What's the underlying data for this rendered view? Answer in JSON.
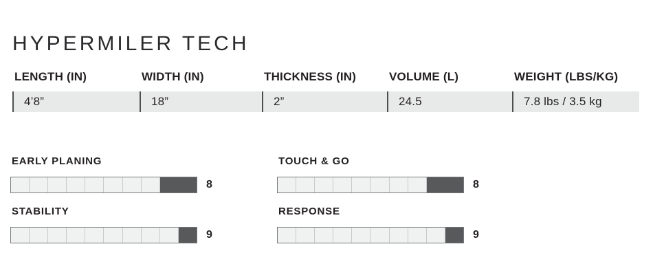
{
  "title": "HYPERMILER TECH",
  "specs": {
    "columns": [
      {
        "label": "LENGTH (IN)",
        "value": "4’8”"
      },
      {
        "label": "WIDTH (IN)",
        "value": "18”"
      },
      {
        "label": "THICKNESS (IN)",
        "value": "2”"
      },
      {
        "label": "VOLUME (L)",
        "value": "24.5"
      },
      {
        "label": "WEIGHT (LBS/KG)",
        "value": "7.8 lbs / 3.5 kg"
      }
    ]
  },
  "ratings": {
    "max": 10,
    "items": [
      {
        "label": "EARLY PLANING",
        "value": 8
      },
      {
        "label": "TOUCH & GO",
        "value": 8
      },
      {
        "label": "STABILITY",
        "value": 9
      },
      {
        "label": "RESPONSE",
        "value": 9
      }
    ]
  },
  "colors": {
    "text": "#231f20",
    "row_bg": "#e8e9e9",
    "cell_divider": "#4d4e50",
    "bar_border": "#77787b",
    "bar_light": "#f0f1f1",
    "bar_seg_divider": "#c9cacb",
    "bar_dark": "#58595b"
  }
}
